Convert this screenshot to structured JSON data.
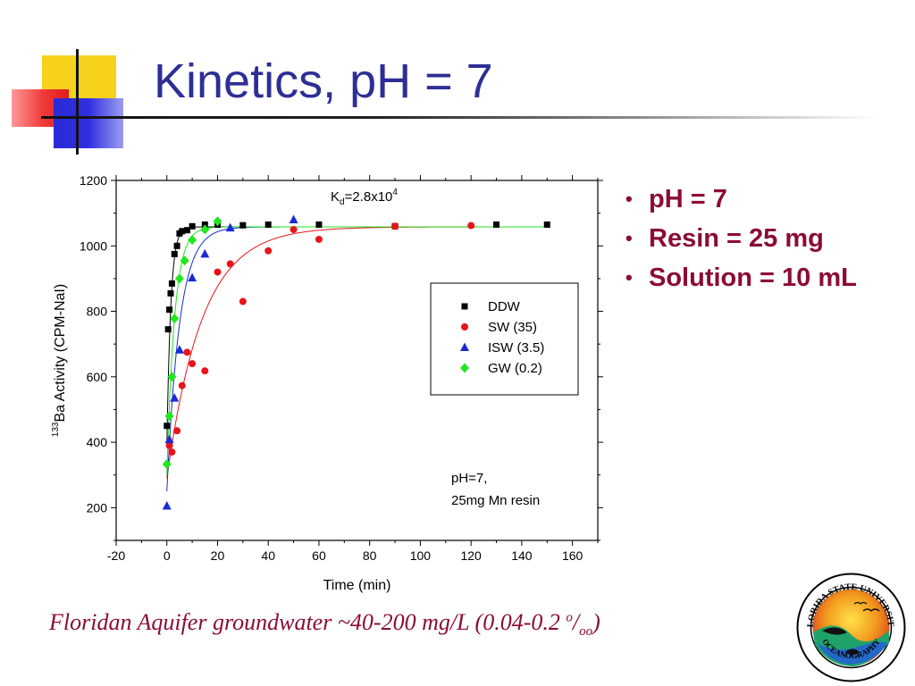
{
  "slide": {
    "title": "Kinetics, pH = 7",
    "bullets": [
      "pH = 7",
      "Resin = 25 mg",
      "Solution = 10 mL"
    ],
    "caption": {
      "main": "Floridan Aquifer groundwater ~40-200 mg/L (0.04-0.2 ",
      "sup": "o",
      "slash": "/",
      "sub": "oo",
      "close": ")"
    },
    "colors": {
      "title": "#2e2e96",
      "text": "#8b0c36"
    },
    "logo_text": "FLORIDA STATE UNIVERSITY OCEANOGRAPHY"
  },
  "chart_data": {
    "type": "scatter",
    "xlabel": "Time (min)",
    "ylabel_sup": "133",
    "ylabel_main": "Ba Activity (CPM-NaI)",
    "xlim": [
      -20,
      170
    ],
    "ylim": [
      100,
      1200
    ],
    "xticks": [
      -20,
      0,
      20,
      40,
      60,
      80,
      100,
      120,
      140,
      160
    ],
    "yticks": [
      200,
      400,
      600,
      800,
      1000,
      1200
    ],
    "annotation_kd": {
      "main": "K",
      "sub": "d",
      "rest": "=2.8x10",
      "sup": "4"
    },
    "annotation_cond": [
      "pH=7,",
      "25mg Mn resin"
    ],
    "legend_position": "center-right",
    "series": [
      {
        "name": "DDW",
        "marker": "square",
        "color": "#000000",
        "x": [
          0,
          0.5,
          1,
          1.5,
          2,
          3,
          4,
          5,
          6,
          8,
          10,
          15,
          20,
          30,
          40,
          60,
          90,
          130,
          150
        ],
        "y": [
          450,
          745,
          805,
          855,
          885,
          975,
          1000,
          1038,
          1045,
          1048,
          1060,
          1065,
          1065,
          1063,
          1065,
          1065,
          1060,
          1065,
          1065
        ],
        "fit": {
          "plateau": 1058,
          "y0": 390,
          "k": 0.65,
          "x0": 0
        }
      },
      {
        "name": "SW (35)",
        "marker": "circle",
        "color": "#e8141b",
        "x": [
          1,
          2,
          4,
          6,
          8,
          10,
          15,
          20,
          25,
          30,
          40,
          50,
          60,
          90,
          120
        ],
        "y": [
          390,
          370,
          435,
          573,
          675,
          640,
          618,
          920,
          945,
          830,
          985,
          1050,
          1020,
          1060,
          1062
        ],
        "fit": {
          "plateau": 1058,
          "y0": 290,
          "k": 0.072,
          "x0": 0
        }
      },
      {
        "name": "ISW (3.5)",
        "marker": "triangle",
        "color": "#1a2bd4",
        "x": [
          0,
          1,
          3,
          5,
          10,
          15,
          25,
          50
        ],
        "y": [
          205,
          408,
          535,
          682,
          902,
          975,
          1055,
          1080
        ],
        "fit": {
          "plateau": 1058,
          "y0": 250,
          "k": 0.2,
          "x0": 0
        }
      },
      {
        "name": "GW (0.2)",
        "marker": "diamond",
        "color": "#22e61e",
        "x": [
          0,
          1,
          2,
          3,
          5,
          7,
          10,
          15,
          20
        ],
        "y": [
          333,
          480,
          600,
          778,
          900,
          955,
          1018,
          1050,
          1075
        ],
        "fit": {
          "plateau": 1058,
          "y0": 300,
          "k": 0.33,
          "x0": 0
        }
      }
    ]
  }
}
